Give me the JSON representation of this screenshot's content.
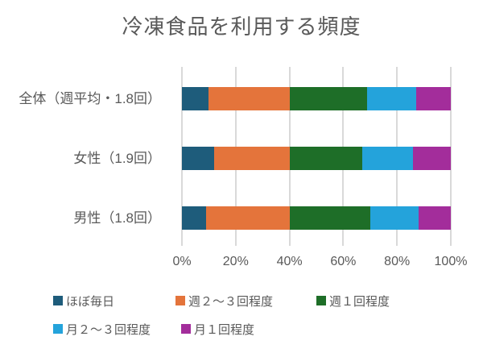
{
  "title": "冷凍食品を利用する頻度",
  "chart_data": {
    "type": "bar",
    "orientation": "horizontal",
    "stacked": true,
    "title": "冷凍食品を利用する頻度",
    "categories": [
      "全体（週平均・1.8回）",
      "女性（1.9回）",
      "男性（1.8回）"
    ],
    "series": [
      {
        "name": "ほぼ毎日",
        "color": "#1E5C7B",
        "values": [
          10,
          12,
          9
        ]
      },
      {
        "name": "週２～３回程度",
        "color": "#E4743B",
        "values": [
          30,
          28,
          31
        ]
      },
      {
        "name": "週１回程度",
        "color": "#1E6E28",
        "values": [
          29,
          27,
          30
        ]
      },
      {
        "name": "月２～３回程度",
        "color": "#24A3DB",
        "values": [
          18,
          19,
          18
        ]
      },
      {
        "name": "月１回程度",
        "color": "#A32D9B",
        "values": [
          13,
          14,
          12
        ]
      }
    ],
    "unit": "percent",
    "x_ticks": [
      "0%",
      "20%",
      "40%",
      "60%",
      "80%",
      "100%"
    ],
    "xlim": [
      0,
      100
    ],
    "grid": "vertical",
    "gridline_color": "#D9D9D9",
    "text_color": "#595959",
    "legend_position": "bottom-left"
  }
}
